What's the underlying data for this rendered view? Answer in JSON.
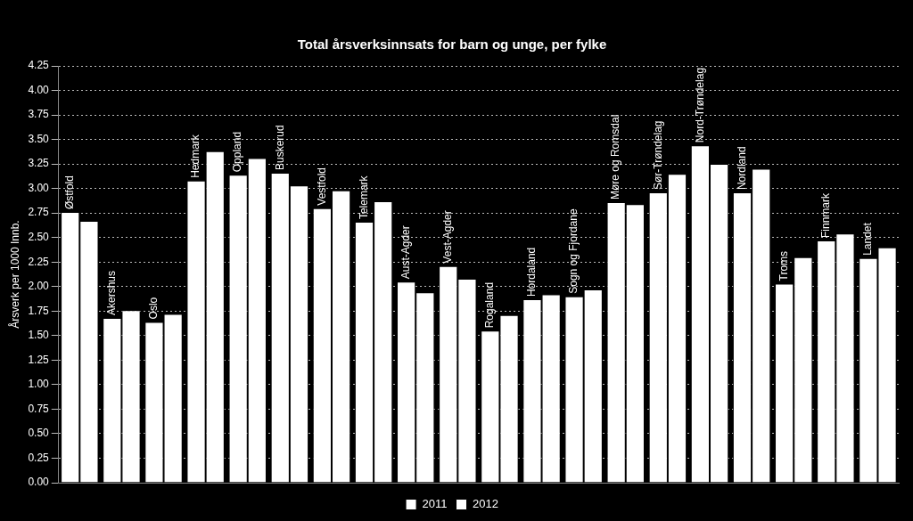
{
  "chart_data": {
    "type": "bar",
    "title": "Total årsverksinnsats for barn og unge, per fylke",
    "y_label": "Årsverk per 1000 Innb.",
    "categories": [
      "Østfold",
      "Akershus",
      "Oslo",
      "Hedmark",
      "Oppland",
      "Buskerud",
      "Vestfold",
      "Telemark",
      "Aust-Agder",
      "Vest-Agder",
      "Rogaland",
      "Hordaland",
      "Sogn og Fjordane",
      "Møre og Romsdal",
      "Sør-Trøndelag",
      "Nord-Trøndelag",
      "Nordland",
      "Troms",
      "Finnmark",
      "Landet"
    ],
    "series": [
      {
        "name": "2011",
        "color": "#ffffff",
        "values": [
          2.76,
          1.68,
          1.64,
          3.08,
          3.14,
          3.16,
          2.8,
          2.66,
          2.05,
          2.21,
          1.55,
          1.87,
          1.9,
          2.86,
          2.96,
          3.44,
          2.96,
          2.03,
          2.47,
          2.29
        ]
      },
      {
        "name": "2012",
        "color": "#ffffff",
        "values": [
          2.67,
          1.76,
          1.72,
          3.38,
          3.31,
          3.03,
          2.98,
          2.87,
          1.94,
          2.08,
          1.71,
          1.92,
          1.97,
          2.84,
          3.15,
          3.25,
          3.2,
          2.3,
          2.54,
          2.4
        ]
      }
    ],
    "ylim": [
      0,
      4.25
    ],
    "yticks": [
      {
        "value": 0,
        "label": "0.00"
      },
      {
        "value": 0.25,
        "label": "0.25"
      },
      {
        "value": 0.5,
        "label": "0.50"
      },
      {
        "value": 0.75,
        "label": "0.75"
      },
      {
        "value": 1,
        "label": "1.00"
      },
      {
        "value": 1.25,
        "label": "1.25"
      },
      {
        "value": 1.5,
        "label": "1.50"
      },
      {
        "value": 1.75,
        "label": "1.75"
      },
      {
        "value": 2,
        "label": "2.00"
      },
      {
        "value": 2.25,
        "label": "2.25"
      },
      {
        "value": 2.5,
        "label": "2.50"
      },
      {
        "value": 2.75,
        "label": "2.75"
      },
      {
        "value": 3,
        "label": "3.00"
      },
      {
        "value": 3.25,
        "label": "3.25"
      },
      {
        "value": 3.5,
        "label": "3.50"
      },
      {
        "value": 3.75,
        "label": "3.75"
      },
      {
        "value": 4,
        "label": "4.00"
      },
      {
        "value": 4.25,
        "label": "4.25"
      }
    ],
    "grid": true,
    "legend": "bottom",
    "tick_labels": "y"
  }
}
